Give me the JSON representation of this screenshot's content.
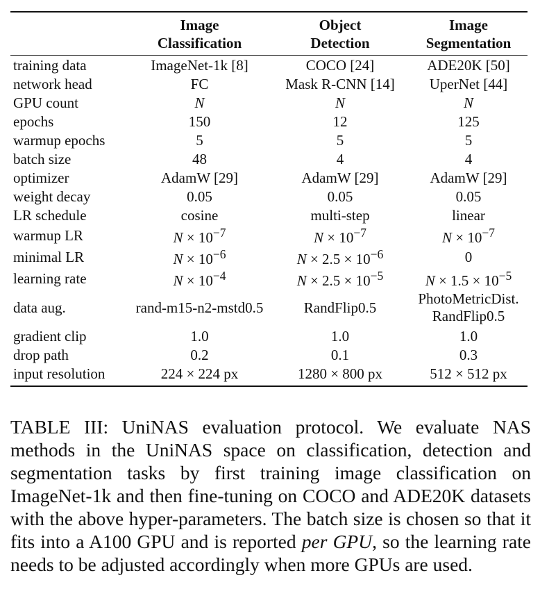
{
  "table": {
    "headers": [
      "",
      "Image\nClassification",
      "Object\nDetection",
      "Image\nSegmentation"
    ],
    "header_lines": [
      [
        "Image",
        "Classification"
      ],
      [
        "Object",
        "Detection"
      ],
      [
        "Image",
        "Segmentation"
      ]
    ],
    "rows": [
      {
        "label": "training data",
        "cells": [
          "ImageNet-1k [8]",
          "COCO [24]",
          "ADE20K [50]"
        ]
      },
      {
        "label": "network head",
        "cells": [
          "FC",
          "Mask R-CNN [14]",
          "UperNet [44]"
        ]
      },
      {
        "label": "GPU count",
        "cells": [
          "N",
          "N",
          "N"
        ]
      },
      {
        "label": "epochs",
        "cells": [
          "150",
          "12",
          "125"
        ]
      },
      {
        "label": "warmup epochs",
        "cells": [
          "5",
          "5",
          "5"
        ]
      },
      {
        "label": "batch size",
        "cells": [
          "48",
          "4",
          "4"
        ]
      },
      {
        "label": "optimizer",
        "cells": [
          "AdamW [29]",
          "AdamW [29]",
          "AdamW [29]"
        ]
      },
      {
        "label": "weight decay",
        "cells": [
          "0.05",
          "0.05",
          "0.05"
        ]
      },
      {
        "label": "LR schedule",
        "cells": [
          "cosine",
          "multi-step",
          "linear"
        ]
      },
      {
        "label": "warmup LR",
        "cells": [
          "N × 10^−7",
          "N × 10^−7",
          "N × 10^−7"
        ]
      },
      {
        "label": "minimal LR",
        "cells": [
          "N × 10^−6",
          "N × 2.5 × 10^−6",
          "0"
        ]
      },
      {
        "label": "learning rate",
        "cells": [
          "N × 10^−4",
          "N × 2.5 × 10^−5",
          "N × 1.5 × 10^−5"
        ]
      },
      {
        "label": "data aug.",
        "cells": [
          "rand-m15-n2-mstd0.5",
          "RandFlip0.5",
          "PhotoMetricDist.\nRandFlip0.5"
        ]
      },
      {
        "label": "gradient clip",
        "cells": [
          "1.0",
          "1.0",
          "1.0"
        ]
      },
      {
        "label": "drop path",
        "cells": [
          "0.2",
          "0.1",
          "0.3"
        ]
      },
      {
        "label": "input resolution",
        "cells": [
          "224 × 224 px",
          "1280 × 800 px",
          "512 × 512 px"
        ]
      }
    ]
  },
  "caption": {
    "before_italic": "TABLE III: UniNAS evaluation protocol. We evaluate NAS methods in the UniNAS space on classification, detection and segmentation tasks by first training image classification on ImageNet-1k and then fine-tuning on COCO and ADE20K datasets with the above hyper-parameters. The batch size is chosen so that it fits into a A100 GPU and is reported ",
    "italic": "per GPU",
    "after_italic": ", so the learning rate needs to be adjusted accordingly when more GPUs are used."
  }
}
